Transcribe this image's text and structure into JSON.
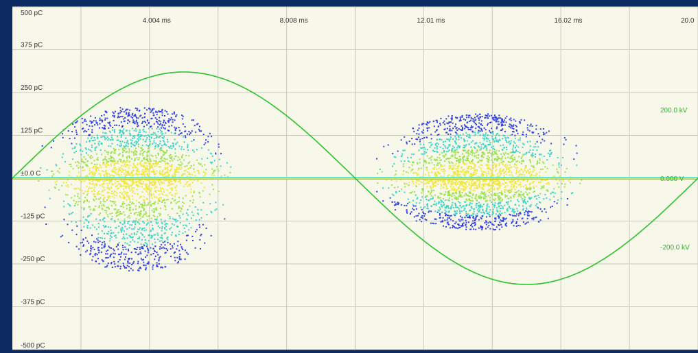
{
  "chart_data": {
    "type": "scatter",
    "title": "",
    "xlabel": "",
    "ylabel": "",
    "xlim": [
      0,
      20.02
    ],
    "ylim": [
      -500,
      500
    ],
    "y_ticks": [
      {
        "value": 500,
        "label": "500 pC"
      },
      {
        "value": 375,
        "label": "375 pC"
      },
      {
        "value": 250,
        "label": "250 pC"
      },
      {
        "value": 125,
        "label": "125 pC"
      },
      {
        "value": 0,
        "label": "±0.0 C"
      },
      {
        "value": -125,
        "label": "-125 pC"
      },
      {
        "value": -250,
        "label": "-250 pC"
      },
      {
        "value": -375,
        "label": "-375 pC"
      },
      {
        "value": -500,
        "label": "-500 pC"
      }
    ],
    "x_ticks": [
      {
        "value": 4.004,
        "label": "4.004 ms"
      },
      {
        "value": 8.008,
        "label": "8.008 ms"
      },
      {
        "value": 12.01,
        "label": "12.01 ms"
      },
      {
        "value": 16.02,
        "label": "16.02 ms"
      },
      {
        "value": 20.02,
        "label": "20.0"
      }
    ],
    "secondary_y_ticks": [
      {
        "value": 200,
        "label": "200.0 kV"
      },
      {
        "value": 0,
        "label": "0.000 V"
      },
      {
        "value": -200,
        "label": "-200.0 kV"
      }
    ],
    "voltage_amplitude_kV": 310,
    "voltage_period_ms": 20.02,
    "grid": true,
    "colors": {
      "background": "#f7f7ea",
      "grid": "#c8c8bc",
      "voltage_curve": "#2cc22c",
      "density_low": "#2f3fe0",
      "density_mid": "#3ad3c8",
      "density_high": "#9be24a",
      "density_peak": "#f0e640"
    },
    "series": [
      {
        "type": "voltage_sine",
        "amplitude": 310,
        "period": 20.02
      },
      {
        "type": "pd_cluster",
        "x_center": 3.6,
        "x_halfwidth": 3.0,
        "y_up": 210,
        "y_down": 270
      },
      {
        "type": "pd_cluster",
        "x_center": 13.6,
        "x_halfwidth": 3.3,
        "y_up": 190,
        "y_down": 150
      }
    ]
  }
}
